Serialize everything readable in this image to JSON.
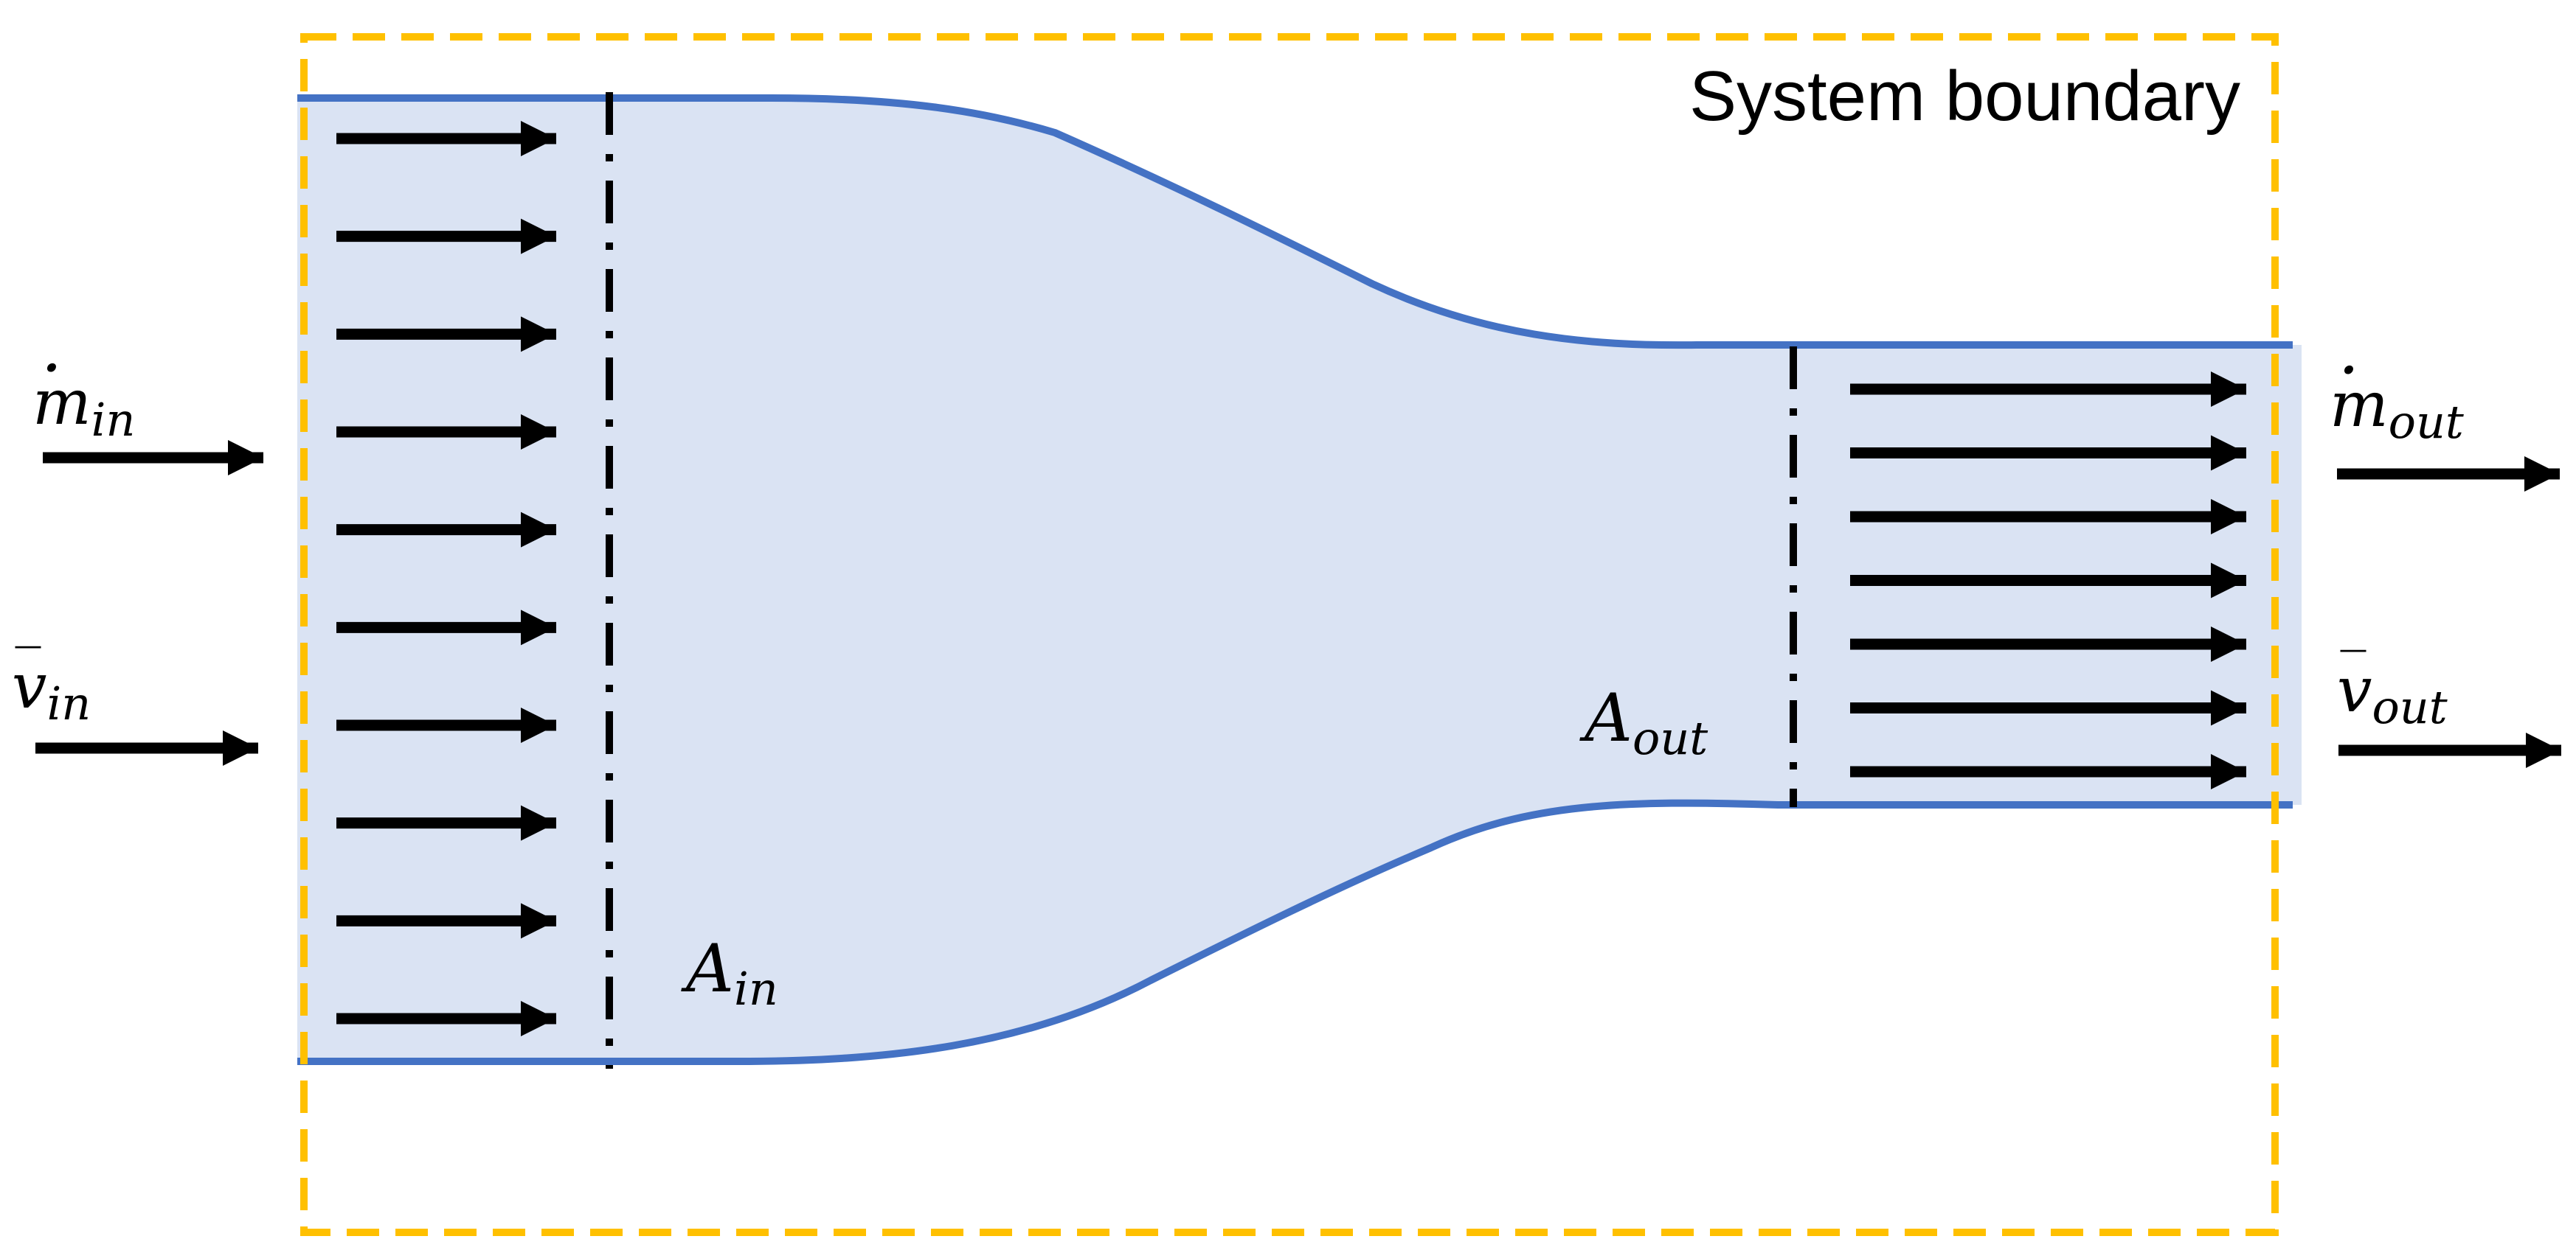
{
  "title_label": "System boundary",
  "colors": {
    "fluid_fill": "#dae3f3",
    "wall_stroke": "#4472c4",
    "boundary_stroke": "#ffc000",
    "arrow": "#000000"
  },
  "inlet": {
    "mass_flow": {
      "symbol": "m",
      "dot": "·",
      "subscript": "in"
    },
    "velocity": {
      "symbol": "v",
      "bar": "‾",
      "subscript": "in"
    },
    "area": {
      "symbol": "A",
      "subscript": "in"
    },
    "profile_arrow_count": 10
  },
  "outlet": {
    "mass_flow": {
      "symbol": "m",
      "dot": "·",
      "subscript": "out"
    },
    "velocity": {
      "symbol": "v",
      "bar": "‾",
      "subscript": "out"
    },
    "area": {
      "symbol": "A",
      "subscript": "out"
    },
    "profile_arrow_count": 7
  }
}
